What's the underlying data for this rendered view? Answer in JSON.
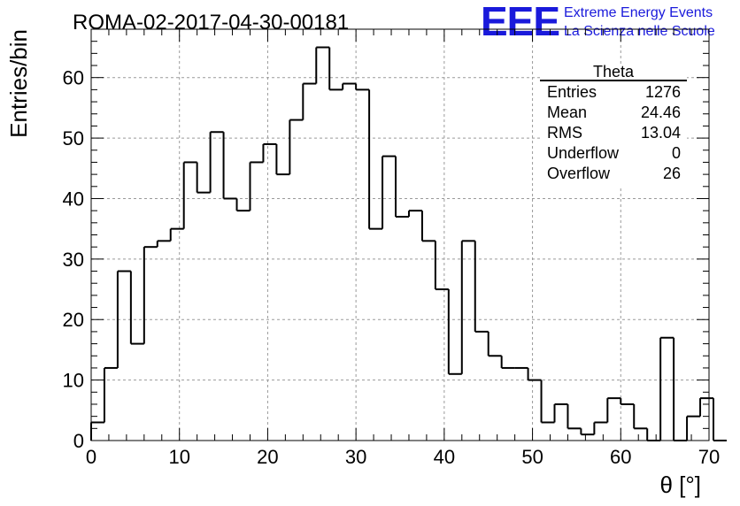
{
  "title": "ROMA-02-2017-04-30-00181",
  "logo": {
    "mark": "EEE",
    "line1": "Extreme Energy Events",
    "line2": "La Scienza nelle Scuole",
    "color": "#1a1adb"
  },
  "stats_box": {
    "name": "Theta",
    "rows": [
      {
        "label": "Entries",
        "value": "1276"
      },
      {
        "label": "Mean",
        "value": "24.46"
      },
      {
        "label": "RMS",
        "value": "13.04"
      },
      {
        "label": "Underflow",
        "value": "0"
      },
      {
        "label": "Overflow",
        "value": "26"
      }
    ]
  },
  "chart_data": {
    "type": "histogram",
    "xlabel": "θ [°]",
    "ylabel": "Entries/bin",
    "xlim": [
      0,
      70
    ],
    "ylim": [
      0,
      68
    ],
    "bin_width": 1.5,
    "bin_start": 0,
    "xticks": [
      0,
      10,
      20,
      30,
      40,
      50,
      60,
      70
    ],
    "yticks": [
      0,
      10,
      20,
      30,
      40,
      50,
      60
    ],
    "grid": true,
    "line_color": "#000000",
    "grid_color": "#9a9a9a",
    "values": [
      3,
      12,
      28,
      16,
      32,
      33,
      35,
      46,
      41,
      51,
      40,
      38,
      46,
      49,
      44,
      53,
      59,
      65,
      58,
      59,
      58,
      35,
      47,
      37,
      38,
      33,
      25,
      11,
      33,
      18,
      14,
      12,
      12,
      10,
      3,
      6,
      2,
      1,
      3,
      7,
      6,
      2,
      0,
      17,
      0,
      4,
      7,
      0
    ]
  }
}
